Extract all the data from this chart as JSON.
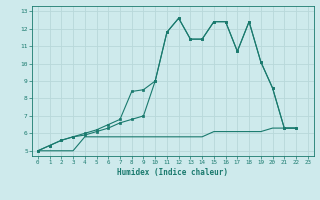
{
  "title": "",
  "xlabel": "Humidex (Indice chaleur)",
  "bg_color": "#ceeaec",
  "grid_color": "#b8d8da",
  "line_color": "#1a7a6e",
  "xlim": [
    -0.5,
    23.5
  ],
  "ylim": [
    4.7,
    13.3
  ],
  "xticks": [
    0,
    1,
    2,
    3,
    4,
    5,
    6,
    7,
    8,
    9,
    10,
    11,
    12,
    13,
    14,
    15,
    16,
    17,
    18,
    19,
    20,
    21,
    22,
    23
  ],
  "yticks": [
    5,
    6,
    7,
    8,
    9,
    10,
    11,
    12,
    13
  ],
  "line1_x": [
    0,
    1,
    2,
    3,
    4,
    5,
    6,
    7,
    8,
    9,
    10,
    11,
    12,
    13,
    14,
    15,
    16,
    17,
    18,
    19,
    20,
    21,
    22
  ],
  "line1_y": [
    5.0,
    5.3,
    5.6,
    5.8,
    6.0,
    6.2,
    6.5,
    6.8,
    8.4,
    8.5,
    9.0,
    11.8,
    12.6,
    11.4,
    11.4,
    12.4,
    12.4,
    10.7,
    12.4,
    10.1,
    8.6,
    6.3,
    6.3
  ],
  "line2_x": [
    0,
    1,
    2,
    3,
    4,
    5,
    6,
    7,
    8,
    9,
    10,
    11,
    12,
    13,
    14,
    15,
    16,
    17,
    18,
    19,
    20,
    21,
    22
  ],
  "line2_y": [
    5.0,
    5.3,
    5.6,
    5.8,
    5.9,
    6.1,
    6.3,
    6.6,
    6.8,
    7.0,
    9.0,
    11.8,
    12.6,
    11.4,
    11.4,
    12.4,
    12.4,
    10.7,
    12.4,
    10.1,
    8.6,
    6.3,
    6.3
  ],
  "line3_x": [
    0,
    1,
    2,
    3,
    4,
    5,
    6,
    7,
    8,
    9,
    10,
    11,
    12,
    13,
    14,
    15,
    16,
    17,
    18,
    19,
    20,
    21,
    22
  ],
  "line3_y": [
    5.0,
    5.0,
    5.0,
    5.0,
    5.8,
    5.8,
    5.8,
    5.8,
    5.8,
    5.8,
    5.8,
    5.8,
    5.8,
    5.8,
    5.8,
    6.1,
    6.1,
    6.1,
    6.1,
    6.1,
    6.3,
    6.3,
    6.3
  ]
}
